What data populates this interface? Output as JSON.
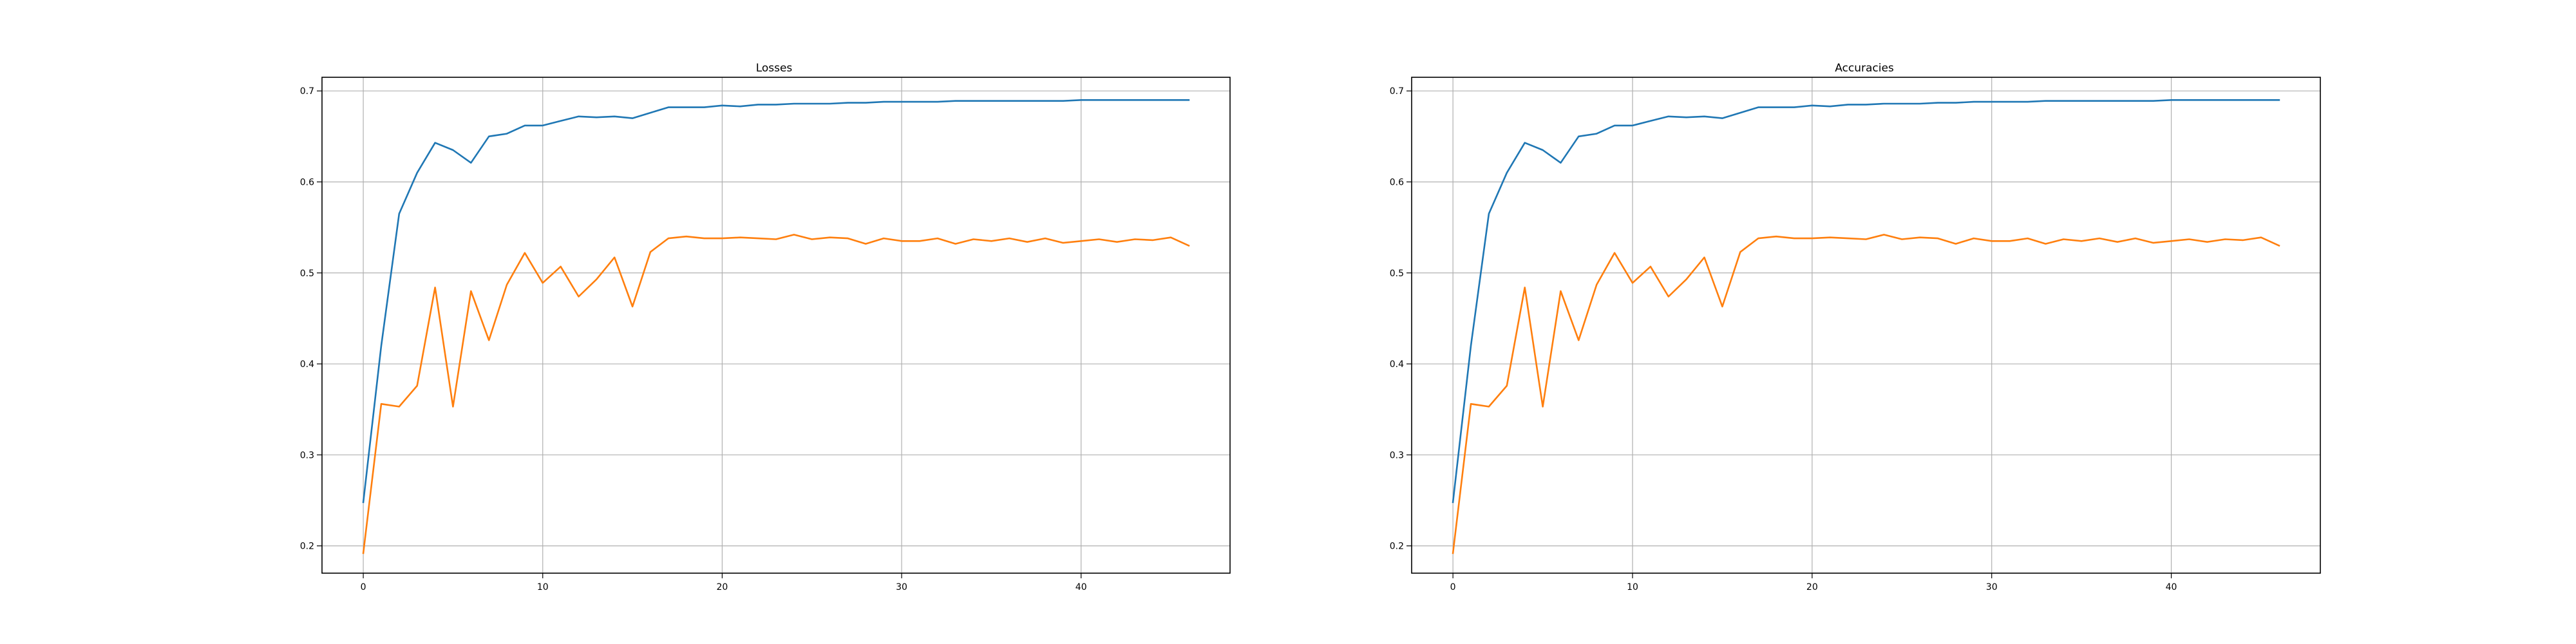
{
  "chart_data": [
    {
      "type": "line",
      "title": "Losses",
      "xlabel": "",
      "ylabel": "",
      "xlim": [
        -2.3,
        48.3
      ],
      "ylim": [
        0.17,
        0.715
      ],
      "xticks": [
        0,
        10,
        20,
        30,
        40
      ],
      "yticks": [
        0.2,
        0.3,
        0.4,
        0.5,
        0.6,
        0.7
      ],
      "grid": true,
      "legend": "none",
      "x": [
        0,
        1,
        2,
        3,
        4,
        5,
        6,
        7,
        8,
        9,
        10,
        11,
        12,
        13,
        14,
        15,
        16,
        17,
        18,
        19,
        20,
        21,
        22,
        23,
        24,
        25,
        26,
        27,
        28,
        29,
        30,
        31,
        32,
        33,
        34,
        35,
        36,
        37,
        38,
        39,
        40,
        41,
        42,
        43,
        44,
        45,
        46
      ],
      "series": [
        {
          "color": "#1f77b4",
          "values": [
            0.248,
            0.42,
            0.565,
            0.61,
            0.643,
            0.635,
            0.621,
            0.65,
            0.653,
            0.662,
            0.662,
            0.667,
            0.672,
            0.671,
            0.672,
            0.67,
            0.676,
            0.682,
            0.682,
            0.682,
            0.684,
            0.683,
            0.685,
            0.685,
            0.686,
            0.686,
            0.686,
            0.687,
            0.687,
            0.688,
            0.688,
            0.688,
            0.688,
            0.689,
            0.689,
            0.689,
            0.689,
            0.689,
            0.689,
            0.689,
            0.69,
            0.69,
            0.69,
            0.69,
            0.69,
            0.69,
            0.69
          ]
        },
        {
          "color": "#ff7f0e",
          "values": [
            0.192,
            0.356,
            0.353,
            0.376,
            0.484,
            0.353,
            0.48,
            0.426,
            0.487,
            0.522,
            0.489,
            0.507,
            0.474,
            0.493,
            0.517,
            0.463,
            0.523,
            0.538,
            0.54,
            0.538,
            0.538,
            0.539,
            0.538,
            0.537,
            0.542,
            0.537,
            0.539,
            0.538,
            0.532,
            0.538,
            0.535,
            0.535,
            0.538,
            0.532,
            0.537,
            0.535,
            0.538,
            0.534,
            0.538,
            0.533,
            0.535,
            0.537,
            0.534,
            0.537,
            0.536,
            0.539,
            0.53
          ]
        }
      ]
    },
    {
      "type": "line",
      "title": "Accuracies",
      "xlabel": "",
      "ylabel": "",
      "xlim": [
        -2.3,
        48.3
      ],
      "ylim": [
        0.17,
        0.715
      ],
      "xticks": [
        0,
        10,
        20,
        30,
        40
      ],
      "yticks": [
        0.2,
        0.3,
        0.4,
        0.5,
        0.6,
        0.7
      ],
      "grid": true,
      "legend": "none",
      "x": [
        0,
        1,
        2,
        3,
        4,
        5,
        6,
        7,
        8,
        9,
        10,
        11,
        12,
        13,
        14,
        15,
        16,
        17,
        18,
        19,
        20,
        21,
        22,
        23,
        24,
        25,
        26,
        27,
        28,
        29,
        30,
        31,
        32,
        33,
        34,
        35,
        36,
        37,
        38,
        39,
        40,
        41,
        42,
        43,
        44,
        45,
        46
      ],
      "series": [
        {
          "color": "#1f77b4",
          "values": [
            0.248,
            0.42,
            0.565,
            0.61,
            0.643,
            0.635,
            0.621,
            0.65,
            0.653,
            0.662,
            0.662,
            0.667,
            0.672,
            0.671,
            0.672,
            0.67,
            0.676,
            0.682,
            0.682,
            0.682,
            0.684,
            0.683,
            0.685,
            0.685,
            0.686,
            0.686,
            0.686,
            0.687,
            0.687,
            0.688,
            0.688,
            0.688,
            0.688,
            0.689,
            0.689,
            0.689,
            0.689,
            0.689,
            0.689,
            0.689,
            0.69,
            0.69,
            0.69,
            0.69,
            0.69,
            0.69,
            0.69
          ]
        },
        {
          "color": "#ff7f0e",
          "values": [
            0.192,
            0.356,
            0.353,
            0.376,
            0.484,
            0.353,
            0.48,
            0.426,
            0.487,
            0.522,
            0.489,
            0.507,
            0.474,
            0.493,
            0.517,
            0.463,
            0.523,
            0.538,
            0.54,
            0.538,
            0.538,
            0.539,
            0.538,
            0.537,
            0.542,
            0.537,
            0.539,
            0.538,
            0.532,
            0.538,
            0.535,
            0.535,
            0.538,
            0.532,
            0.537,
            0.535,
            0.538,
            0.534,
            0.538,
            0.533,
            0.535,
            0.537,
            0.534,
            0.537,
            0.536,
            0.539,
            0.53
          ]
        }
      ]
    }
  ]
}
